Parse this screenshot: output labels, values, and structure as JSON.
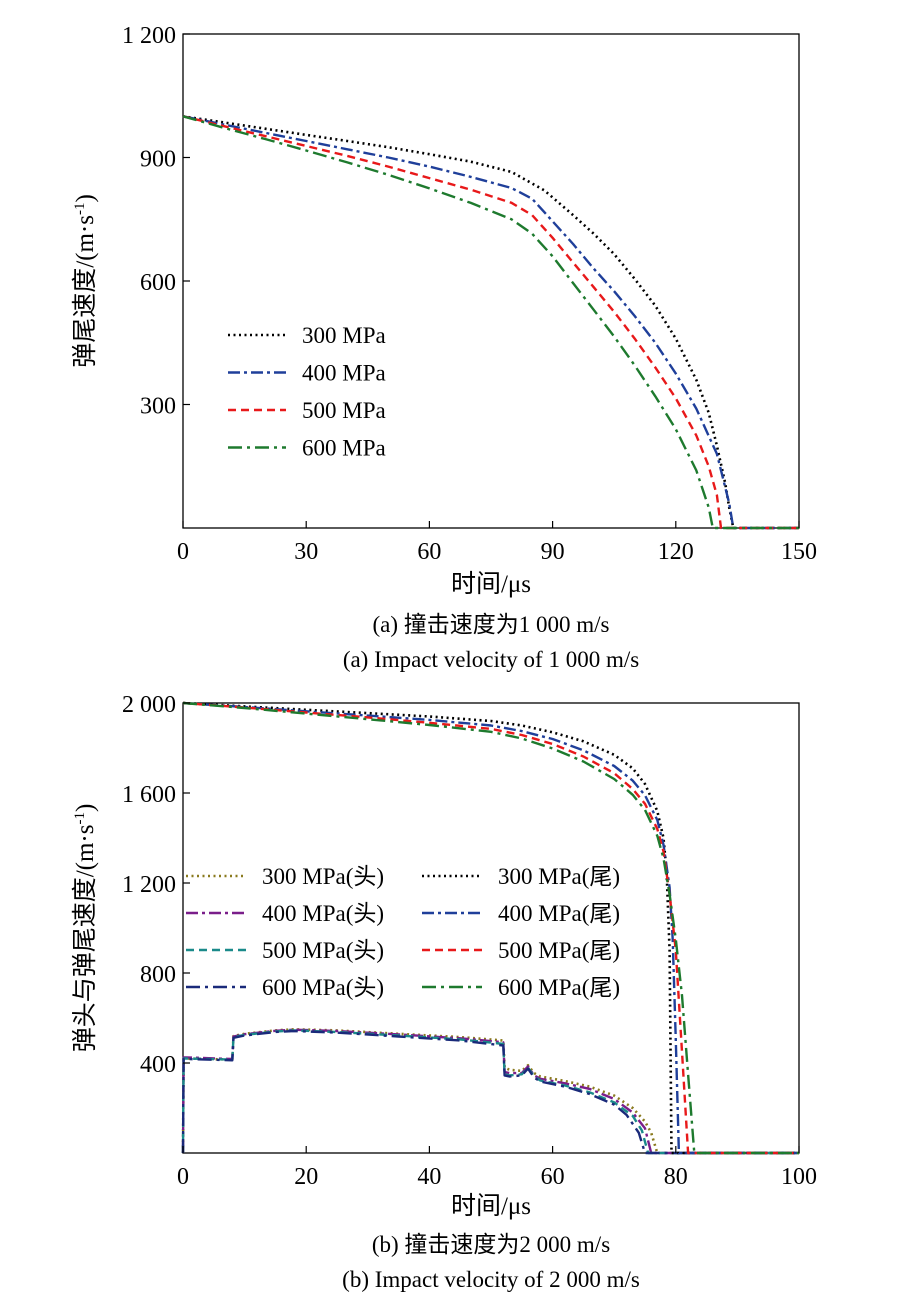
{
  "chart_data": [
    {
      "type": "line",
      "caption_zh": "(a) 撞击速度为1 000 m/s",
      "caption_en": "(a) Impact velocity of 1 000 m/s",
      "xlabel": "时间/μs",
      "ylabel": "弹尾速度/(m·s",
      "ylabel_sup": "-1",
      "ylabel_tail": ")",
      "xlim": [
        0,
        150
      ],
      "ylim": [
        0,
        1200
      ],
      "xticks": [
        0,
        30,
        60,
        90,
        120,
        150
      ],
      "xtick_labels": [
        "0",
        "30",
        "60",
        "90",
        "120",
        "150"
      ],
      "yticks": [
        300,
        600,
        900,
        1200
      ],
      "ytick_labels": [
        "300",
        "600",
        "900",
        "1 200"
      ],
      "grid": false,
      "legend_position": "lower-left",
      "series": [
        {
          "name": "300 MPa",
          "color": "#000000",
          "dash": "dotted",
          "x": [
            0,
            10,
            20,
            30,
            40,
            50,
            60,
            70,
            80,
            88,
            95,
            100,
            105,
            110,
            115,
            120,
            125,
            128,
            130,
            132,
            133,
            134,
            150
          ],
          "y": [
            1000,
            985,
            970,
            955,
            940,
            925,
            908,
            890,
            865,
            820,
            760,
            715,
            665,
            605,
            540,
            460,
            360,
            280,
            200,
            110,
            50,
            0,
            0
          ]
        },
        {
          "name": "400 MPa",
          "color": "#1f3f9a",
          "dash": "dashdot",
          "x": [
            0,
            10,
            20,
            30,
            40,
            50,
            60,
            70,
            80,
            85,
            90,
            95,
            100,
            105,
            110,
            115,
            120,
            125,
            130,
            133,
            134,
            150
          ],
          "y": [
            1000,
            980,
            960,
            940,
            920,
            900,
            878,
            853,
            826,
            800,
            745,
            690,
            630,
            575,
            515,
            450,
            375,
            290,
            180,
            60,
            0,
            0
          ]
        },
        {
          "name": "500 MPa",
          "color": "#e8191a",
          "dash": "dashed",
          "x": [
            0,
            10,
            20,
            30,
            40,
            50,
            60,
            70,
            80,
            85,
            90,
            95,
            100,
            105,
            110,
            115,
            120,
            125,
            128,
            130,
            131,
            150
          ],
          "y": [
            1000,
            976,
            952,
            928,
            904,
            878,
            850,
            822,
            790,
            760,
            705,
            645,
            585,
            525,
            460,
            390,
            315,
            225,
            150,
            80,
            0,
            0
          ]
        },
        {
          "name": "600 MPa",
          "color": "#1e7a2e",
          "dash": "dashdot2",
          "x": [
            0,
            10,
            20,
            30,
            40,
            50,
            60,
            70,
            80,
            85,
            90,
            95,
            100,
            105,
            110,
            115,
            120,
            125,
            128,
            129,
            150
          ],
          "y": [
            1000,
            972,
            945,
            917,
            888,
            858,
            825,
            790,
            750,
            715,
            660,
            595,
            530,
            465,
            395,
            320,
            240,
            140,
            50,
            0,
            0
          ]
        }
      ]
    },
    {
      "type": "line",
      "caption_zh": "(b) 撞击速度为2 000 m/s",
      "caption_en": "(b) Impact velocity of 2 000 m/s",
      "xlabel": "时间/μs",
      "ylabel": "弹头与弹尾速度/(m·s",
      "ylabel_sup": "-1",
      "ylabel_tail": ")",
      "xlim": [
        0,
        100
      ],
      "ylim": [
        0,
        2000
      ],
      "xticks": [
        0,
        20,
        40,
        60,
        80,
        100
      ],
      "xtick_labels": [
        "0",
        "20",
        "40",
        "60",
        "80",
        "100"
      ],
      "yticks": [
        400,
        800,
        1200,
        1600,
        2000
      ],
      "ytick_labels": [
        "400",
        "800",
        "1 200",
        "1 600",
        "2 000"
      ],
      "grid": false,
      "legend_position": "middle-left",
      "series": [
        {
          "name": "300 MPa(头)",
          "color": "#8a7a1e",
          "dash": "dotted",
          "x": [
            0,
            0.1,
            0.5,
            8,
            8.2,
            10,
            15,
            18,
            25,
            35,
            45,
            52,
            52.2,
            53,
            55,
            56,
            57,
            58,
            62,
            66,
            70,
            73,
            75,
            76,
            77,
            100
          ],
          "y": [
            0,
            420,
            420,
            415,
            520,
            530,
            545,
            550,
            545,
            530,
            515,
            500,
            380,
            370,
            365,
            390,
            355,
            340,
            320,
            295,
            255,
            200,
            140,
            90,
            0,
            0
          ]
        },
        {
          "name": "400 MPa(头)",
          "color": "#7a1e8a",
          "dash": "dashdot",
          "x": [
            0,
            0.1,
            0.5,
            8,
            8.2,
            10,
            15,
            18,
            25,
            35,
            45,
            52,
            52.2,
            53,
            55,
            56,
            57,
            58,
            62,
            66,
            70,
            73,
            75,
            76,
            100
          ],
          "y": [
            0,
            425,
            425,
            418,
            518,
            528,
            543,
            548,
            542,
            527,
            510,
            492,
            360,
            355,
            355,
            385,
            345,
            330,
            310,
            285,
            240,
            180,
            110,
            0,
            0
          ]
        },
        {
          "name": "500 MPa(头)",
          "color": "#1a8a8a",
          "dash": "dashed",
          "x": [
            0,
            0.1,
            0.5,
            8,
            8.2,
            10,
            15,
            18,
            25,
            35,
            45,
            52,
            52.2,
            53,
            55,
            56,
            57,
            58,
            62,
            66,
            70,
            73,
            74.5,
            75.5,
            100
          ],
          "y": [
            0,
            420,
            420,
            415,
            515,
            525,
            540,
            545,
            538,
            522,
            505,
            485,
            350,
            345,
            350,
            380,
            340,
            322,
            300,
            270,
            225,
            165,
            100,
            0,
            0
          ]
        },
        {
          "name": "600 MPa(头)",
          "color": "#1a2a7a",
          "dash": "dashdot2",
          "x": [
            0,
            0.1,
            0.5,
            8,
            8.2,
            10,
            15,
            18,
            25,
            35,
            45,
            52,
            52.2,
            53,
            55,
            56,
            57,
            58,
            62,
            66,
            70,
            72,
            74,
            75,
            100
          ],
          "y": [
            0,
            418,
            418,
            412,
            512,
            522,
            538,
            542,
            535,
            518,
            500,
            478,
            345,
            340,
            345,
            375,
            335,
            318,
            295,
            262,
            215,
            170,
            90,
            0,
            0
          ]
        },
        {
          "name": "300 MPa(尾)",
          "color": "#000000",
          "dash": "dotted",
          "x": [
            0,
            10,
            20,
            30,
            40,
            50,
            55,
            60,
            65,
            70,
            73,
            75,
            77,
            78,
            78.5,
            79,
            79.3,
            100
          ],
          "y": [
            2000,
            1985,
            1970,
            1955,
            1940,
            1920,
            1900,
            1870,
            1830,
            1770,
            1710,
            1640,
            1520,
            1400,
            1250,
            900,
            0,
            0
          ]
        },
        {
          "name": "400 MPa(尾)",
          "color": "#1f3f9a",
          "dash": "dashdot",
          "x": [
            0,
            10,
            20,
            30,
            40,
            50,
            55,
            60,
            65,
            70,
            73,
            75,
            77,
            78,
            79,
            79.5,
            80,
            80.5,
            100
          ],
          "y": [
            2000,
            1982,
            1963,
            1944,
            1925,
            1900,
            1875,
            1840,
            1790,
            1720,
            1655,
            1590,
            1480,
            1370,
            1180,
            950,
            500,
            0,
            0
          ]
        },
        {
          "name": "500 MPa(尾)",
          "color": "#e8191a",
          "dash": "dashed",
          "x": [
            0,
            10,
            20,
            30,
            40,
            50,
            55,
            60,
            65,
            70,
            73,
            75,
            77,
            78,
            79,
            80,
            81,
            82,
            100
          ],
          "y": [
            2000,
            1980,
            1958,
            1936,
            1912,
            1885,
            1858,
            1818,
            1762,
            1688,
            1618,
            1552,
            1440,
            1340,
            1150,
            900,
            450,
            0,
            0
          ]
        },
        {
          "name": "600 MPa(尾)",
          "color": "#1e7a2e",
          "dash": "dashdot2",
          "x": [
            0,
            10,
            20,
            30,
            40,
            50,
            55,
            60,
            65,
            70,
            73,
            75,
            77,
            78,
            79,
            80,
            81,
            82,
            83,
            100
          ],
          "y": [
            2000,
            1978,
            1953,
            1928,
            1902,
            1872,
            1842,
            1798,
            1740,
            1662,
            1592,
            1525,
            1410,
            1310,
            1150,
            950,
            700,
            350,
            0,
            0
          ]
        }
      ]
    }
  ]
}
